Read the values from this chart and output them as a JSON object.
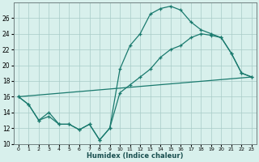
{
  "xlabel": "Humidex (Indice chaleur)",
  "x_ticks": [
    0,
    1,
    2,
    3,
    4,
    5,
    6,
    7,
    8,
    9,
    10,
    11,
    12,
    13,
    14,
    15,
    16,
    17,
    18,
    19,
    20,
    21,
    22,
    23
  ],
  "line1_x": [
    0,
    1,
    2,
    3,
    4,
    5,
    6,
    7,
    8,
    9,
    10,
    11,
    12,
    13,
    14,
    15,
    16,
    17,
    18,
    19,
    20,
    21,
    22,
    23
  ],
  "line1_y": [
    16.0,
    15.0,
    13.0,
    13.5,
    12.5,
    12.5,
    11.8,
    12.5,
    10.5,
    12.0,
    19.5,
    22.5,
    24.0,
    26.5,
    27.2,
    27.5,
    27.0,
    25.5,
    24.5,
    24.0,
    23.5,
    21.5,
    19.0,
    18.5
  ],
  "line2_x": [
    0,
    1,
    2,
    3,
    4,
    5,
    6,
    7,
    8,
    9,
    10,
    11,
    12,
    13,
    14,
    15,
    16,
    17,
    18,
    19,
    20,
    21,
    22,
    23
  ],
  "line2_y": [
    16.0,
    15.0,
    13.0,
    14.0,
    12.5,
    12.5,
    11.8,
    12.5,
    10.5,
    12.0,
    16.5,
    17.5,
    18.5,
    19.5,
    21.0,
    22.0,
    22.5,
    23.5,
    24.0,
    23.8,
    23.5,
    21.5,
    19.0,
    18.5
  ],
  "line3_x": [
    0,
    23
  ],
  "line3_y": [
    16.0,
    18.5
  ],
  "ylim": [
    10,
    28
  ],
  "yticks": [
    10,
    12,
    14,
    16,
    18,
    20,
    22,
    24,
    26
  ],
  "line_color": "#1a7a6e",
  "bg_color": "#d8f0ec",
  "grid_color": "#a8ccc8",
  "marker": "+"
}
